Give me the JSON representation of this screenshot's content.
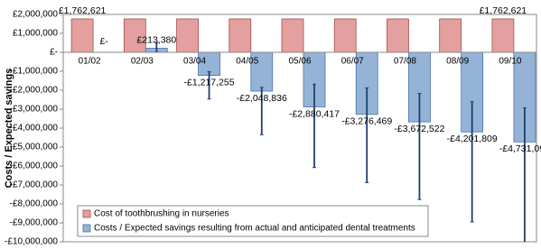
{
  "chart_data": {
    "type": "bar",
    "y_label": "Costs / Expected savings",
    "categories": [
      "01/02",
      "02/03",
      "03/04",
      "04/05",
      "05/06",
      "06/07",
      "07/08",
      "08/09",
      "09/10"
    ],
    "series": [
      {
        "name": "Cost of toothbrushing in nurseries",
        "color": "#e3a09e",
        "values": [
          1762621,
          1762621,
          1762621,
          1762621,
          1762621,
          1762621,
          1762621,
          1762621,
          1762621
        ],
        "value_labels": [
          "£1,762,621",
          null,
          null,
          null,
          null,
          null,
          null,
          null,
          "£1,762,621"
        ]
      },
      {
        "name": "Costs / Expected savings resulting from actual and anticipated dental treatments",
        "color": "#95b3d7",
        "values": [
          0,
          213380,
          -1217255,
          -2048836,
          -2880417,
          -3276469,
          -3672522,
          -4201809,
          -4731097
        ],
        "value_labels": [
          "£-",
          "£213,380",
          "-£1,217,255",
          "-£2,048,836",
          "-£2,880,417",
          "-£3,276,469",
          "-£3,672,522",
          "-£4,201,809",
          "-£4,731,097"
        ],
        "error_minus": [
          0,
          200000,
          1250000,
          2300000,
          3200000,
          3600000,
          4100000,
          4750000,
          5300000
        ],
        "error_plus": [
          0,
          300000,
          200000,
          200000,
          1200000,
          1400000,
          1500000,
          1600000,
          1800000
        ]
      }
    ],
    "ylim": [
      -10000000,
      2000000
    ],
    "yticks": [
      {
        "value": 2000000,
        "label": "£2,000,000"
      },
      {
        "value": 1000000,
        "label": "£1,000,000"
      },
      {
        "value": 0,
        "label": "£-"
      },
      {
        "value": -1000000,
        "label": "-£1,000,000"
      },
      {
        "value": -2000000,
        "label": "-£2,000,000"
      },
      {
        "value": -3000000,
        "label": "-£3,000,000"
      },
      {
        "value": -4000000,
        "label": "-£4,000,000"
      },
      {
        "value": -5000000,
        "label": "-£5,000,000"
      },
      {
        "value": -6000000,
        "label": "-£6,000,000"
      },
      {
        "value": -7000000,
        "label": "-£7,000,000"
      },
      {
        "value": -8000000,
        "label": "-£8,000,000"
      },
      {
        "value": -9000000,
        "label": "-£9,000,000"
      },
      {
        "value": -10000000,
        "label": "-£10,000,000"
      }
    ],
    "grid": false,
    "legend": "lower-left"
  }
}
